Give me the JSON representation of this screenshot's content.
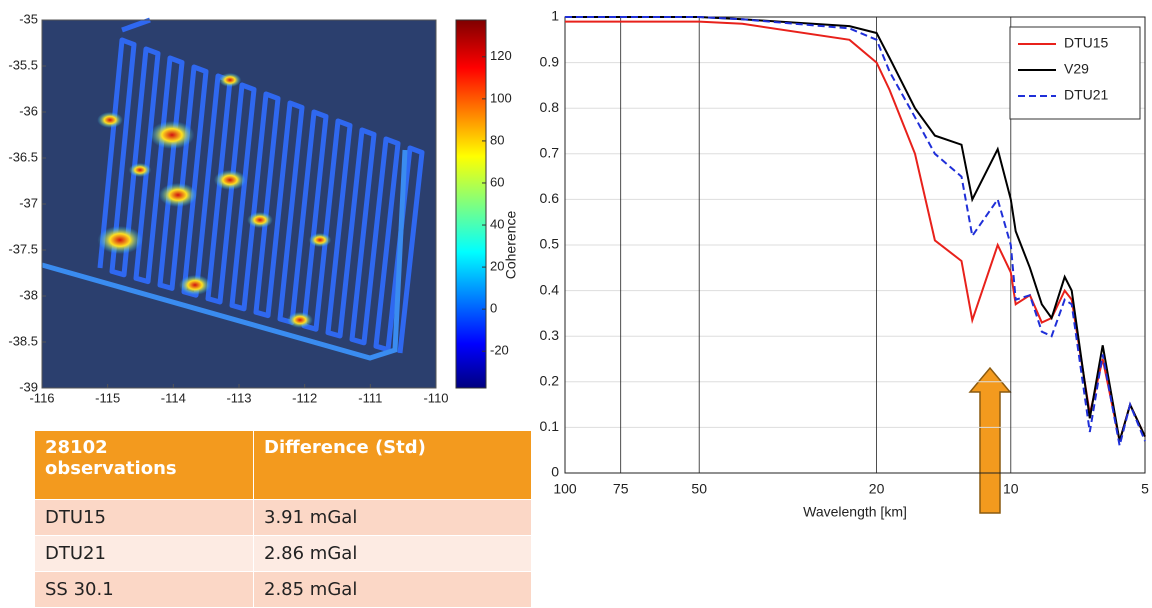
{
  "chart_data": [
    {
      "type": "map",
      "xlim": [
        -116,
        -110
      ],
      "ylim": [
        -39,
        -35
      ],
      "xticks": [
        -116,
        -115,
        -114,
        -113,
        -112,
        -111,
        -110
      ],
      "yticks": [
        -35,
        -35.5,
        -36,
        -36.5,
        -37,
        -37.5,
        -38,
        -38.5,
        -39
      ],
      "colorbar_lim": [
        -37.5,
        137.5
      ],
      "colorbar_ticks": [
        -20,
        0,
        20,
        40,
        60,
        80,
        100,
        120
      ]
    },
    {
      "type": "line",
      "x_label": "Wavelength [km]",
      "y_label": "Coherence",
      "log_x": true,
      "grid": true,
      "legend": "upper right",
      "xlim": [
        100,
        5
      ],
      "ylim": [
        0,
        1
      ],
      "xticks": [
        100,
        75,
        50,
        20,
        10,
        5
      ],
      "yticks": [
        0,
        0.1,
        0.2,
        0.3,
        0.4,
        0.5,
        0.6,
        0.7,
        0.8,
        0.9,
        1
      ],
      "x": [
        100,
        75,
        50,
        40,
        23,
        20,
        18.7,
        16.4,
        14.8,
        12.9,
        12.2,
        10.7,
        10,
        9.75,
        9.06,
        8.52,
        8.1,
        7.57,
        7.3,
        6.65,
        6.22,
        5.7,
        5.4,
        5
      ],
      "series": [
        {
          "name": "DTU15",
          "color": "#e8211b",
          "linestyle": "-",
          "values": [
            0.99,
            0.99,
            0.99,
            0.985,
            0.95,
            0.9,
            0.84,
            0.7,
            0.51,
            0.465,
            0.335,
            0.5,
            0.44,
            0.37,
            0.39,
            0.33,
            0.34,
            0.4,
            0.38,
            0.13,
            0.25,
            0.07,
            0.15,
            0.08
          ]
        },
        {
          "name": "V29",
          "color": "#000000",
          "linestyle": "-",
          "values": [
            1,
            1,
            1,
            0.995,
            0.98,
            0.965,
            0.91,
            0.8,
            0.74,
            0.72,
            0.6,
            0.71,
            0.6,
            0.53,
            0.45,
            0.37,
            0.34,
            0.43,
            0.4,
            0.12,
            0.28,
            0.07,
            0.15,
            0.08
          ]
        },
        {
          "name": "DTU21",
          "color": "#1f2fd8",
          "linestyle": "--",
          "values": [
            1,
            1,
            1,
            0.995,
            0.975,
            0.95,
            0.88,
            0.78,
            0.7,
            0.65,
            0.52,
            0.6,
            0.5,
            0.38,
            0.39,
            0.31,
            0.3,
            0.38,
            0.37,
            0.09,
            0.26,
            0.06,
            0.15,
            0.07
          ]
        }
      ]
    }
  ],
  "table": {
    "header": [
      "28102 observations",
      "Difference (Std)"
    ],
    "rows": [
      [
        "DTU15",
        "3.91 mGal"
      ],
      [
        "DTU21",
        "2.86 mGal"
      ],
      [
        "SS 30.1",
        "2.85 mGal"
      ]
    ]
  }
}
